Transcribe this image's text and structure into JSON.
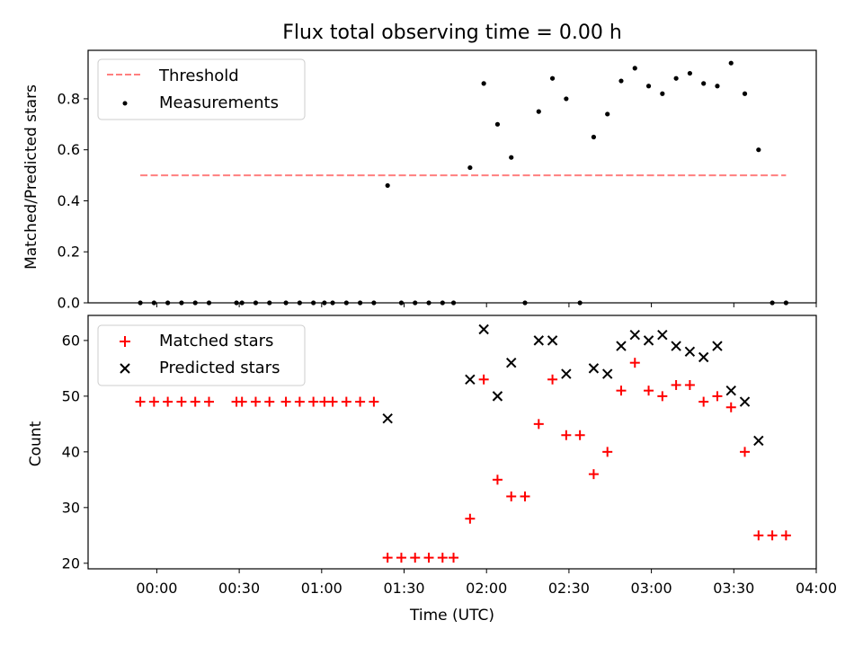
{
  "chart_data": [
    {
      "type": "scatter",
      "title": "Flux total observing time = 0.00 h",
      "xlabel": "",
      "ylabel": "Matched/Predicted stars",
      "xlim_minutes": [
        -25,
        240
      ],
      "ylim": [
        0,
        0.99
      ],
      "yticks": [
        0.0,
        0.2,
        0.4,
        0.6,
        0.8
      ],
      "ytick_labels": [
        "0.0",
        "0.2",
        "0.4",
        "0.6",
        "0.8"
      ],
      "legend": [
        "Threshold",
        "Measurements"
      ],
      "legend_position": "upper left",
      "threshold": {
        "name": "Threshold",
        "x": [
          "23:54",
          "03:49"
        ],
        "y": 0.5,
        "color": "#ff7f7f",
        "style": "dashed"
      },
      "series": [
        {
          "name": "Measurements",
          "color": "#000000",
          "marker": "dot",
          "x": [
            "23:54",
            "23:59",
            "00:04",
            "00:09",
            "00:14",
            "00:19",
            "00:29",
            "00:31",
            "00:36",
            "00:41",
            "00:47",
            "00:52",
            "00:57",
            "01:01",
            "01:04",
            "01:09",
            "01:14",
            "01:19",
            "01:24",
            "01:29",
            "01:34",
            "01:39",
            "01:44",
            "01:48",
            "01:54",
            "01:59",
            "02:04",
            "02:09",
            "02:14",
            "02:19",
            "02:24",
            "02:29",
            "02:34",
            "02:39",
            "02:44",
            "02:49",
            "02:54",
            "02:59",
            "03:04",
            "03:09",
            "03:14",
            "03:19",
            "03:24",
            "03:29",
            "03:34",
            "03:39",
            "03:44",
            "03:49"
          ],
          "y": [
            0,
            0,
            0,
            0,
            0,
            0,
            0,
            0,
            0,
            0,
            0,
            0,
            0,
            0,
            0,
            0,
            0,
            0,
            0.46,
            0,
            0,
            0,
            0,
            0,
            0.53,
            0.86,
            0.7,
            0.57,
            0,
            0.75,
            0.88,
            0.8,
            0,
            0.65,
            0.74,
            0.87,
            0.92,
            0.85,
            0.82,
            0.88,
            0.9,
            0.86,
            0.85,
            0.94,
            0.82,
            0.6,
            0,
            0
          ]
        }
      ]
    },
    {
      "type": "scatter",
      "title": "",
      "xlabel": "Time (UTC)",
      "ylabel": "Count",
      "xlim_minutes": [
        -25,
        240
      ],
      "ylim": [
        19,
        64.5
      ],
      "yticks": [
        20,
        30,
        40,
        50,
        60
      ],
      "ytick_labels": [
        "20",
        "30",
        "40",
        "50",
        "60"
      ],
      "xticks": [
        "00:00",
        "00:30",
        "01:00",
        "01:30",
        "02:00",
        "02:30",
        "03:00",
        "03:30",
        "04:00"
      ],
      "legend": [
        "Matched stars",
        "Predicted stars"
      ],
      "legend_position": "upper left",
      "series": [
        {
          "name": "Matched stars",
          "color": "#ff0000",
          "marker": "plus",
          "x": [
            "23:54",
            "23:59",
            "00:04",
            "00:09",
            "00:14",
            "00:19",
            "00:29",
            "00:31",
            "00:36",
            "00:41",
            "00:47",
            "00:52",
            "00:57",
            "01:01",
            "01:04",
            "01:09",
            "01:14",
            "01:19",
            "01:24",
            "01:29",
            "01:34",
            "01:39",
            "01:44",
            "01:48",
            "01:54",
            "01:59",
            "02:04",
            "02:09",
            "02:14",
            "02:19",
            "02:24",
            "02:29",
            "02:34",
            "02:39",
            "02:44",
            "02:49",
            "02:54",
            "02:59",
            "03:04",
            "03:09",
            "03:14",
            "03:19",
            "03:24",
            "03:29",
            "03:34",
            "03:39",
            "03:44",
            "03:49"
          ],
          "y": [
            49,
            49,
            49,
            49,
            49,
            49,
            49,
            49,
            49,
            49,
            49,
            49,
            49,
            49,
            49,
            49,
            49,
            49,
            21,
            21,
            21,
            21,
            21,
            21,
            28,
            53,
            35,
            32,
            32,
            45,
            53,
            43,
            43,
            36,
            40,
            51,
            56,
            51,
            50,
            52,
            52,
            49,
            50,
            48,
            40,
            25,
            25,
            25
          ]
        },
        {
          "name": "Predicted stars",
          "color": "#000000",
          "marker": "x",
          "x": [
            "01:24",
            "01:54",
            "01:59",
            "02:04",
            "02:09",
            "02:19",
            "02:24",
            "02:29",
            "02:39",
            "02:44",
            "02:49",
            "02:54",
            "02:59",
            "03:04",
            "03:09",
            "03:14",
            "03:19",
            "03:24",
            "03:29",
            "03:34",
            "03:39"
          ],
          "y": [
            46,
            53,
            62,
            50,
            56,
            60,
            60,
            54,
            55,
            54,
            59,
            61,
            60,
            61,
            59,
            58,
            57,
            59,
            51,
            49,
            42
          ]
        }
      ]
    }
  ]
}
